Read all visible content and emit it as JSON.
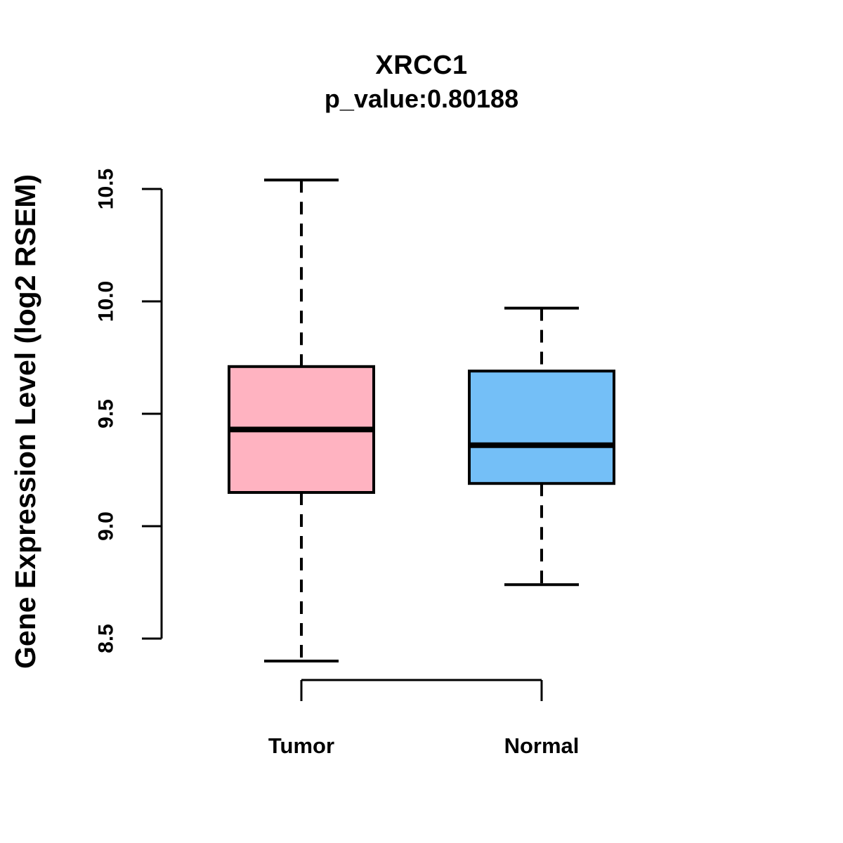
{
  "chart_data": {
    "type": "boxplot",
    "title": "XRCC1",
    "subtitle": "p_value:0.80188",
    "ylabel": "Gene Expression Level (log2 RSEM)",
    "xlabel": "",
    "ylim": [
      8.5,
      10.5
    ],
    "yticks": [
      8.5,
      9.0,
      9.5,
      10.0,
      10.5
    ],
    "ytick_labels": [
      "8.5",
      "9.0",
      "9.5",
      "10.0",
      "10.5"
    ],
    "categories": [
      "Tumor",
      "Normal"
    ],
    "grid": "off",
    "legend": "none",
    "whisker_style": "dashed",
    "line_color": "#000000",
    "background_color": "#ffffff",
    "series": [
      {
        "name": "Tumor",
        "color": "#FFB3C1",
        "min": 8.4,
        "q1": 9.15,
        "median": 9.43,
        "q3": 9.71,
        "max": 10.54
      },
      {
        "name": "Normal",
        "color": "#74BFF7",
        "min": 8.74,
        "q1": 9.19,
        "median": 9.36,
        "q3": 9.69,
        "max": 9.97
      }
    ]
  }
}
